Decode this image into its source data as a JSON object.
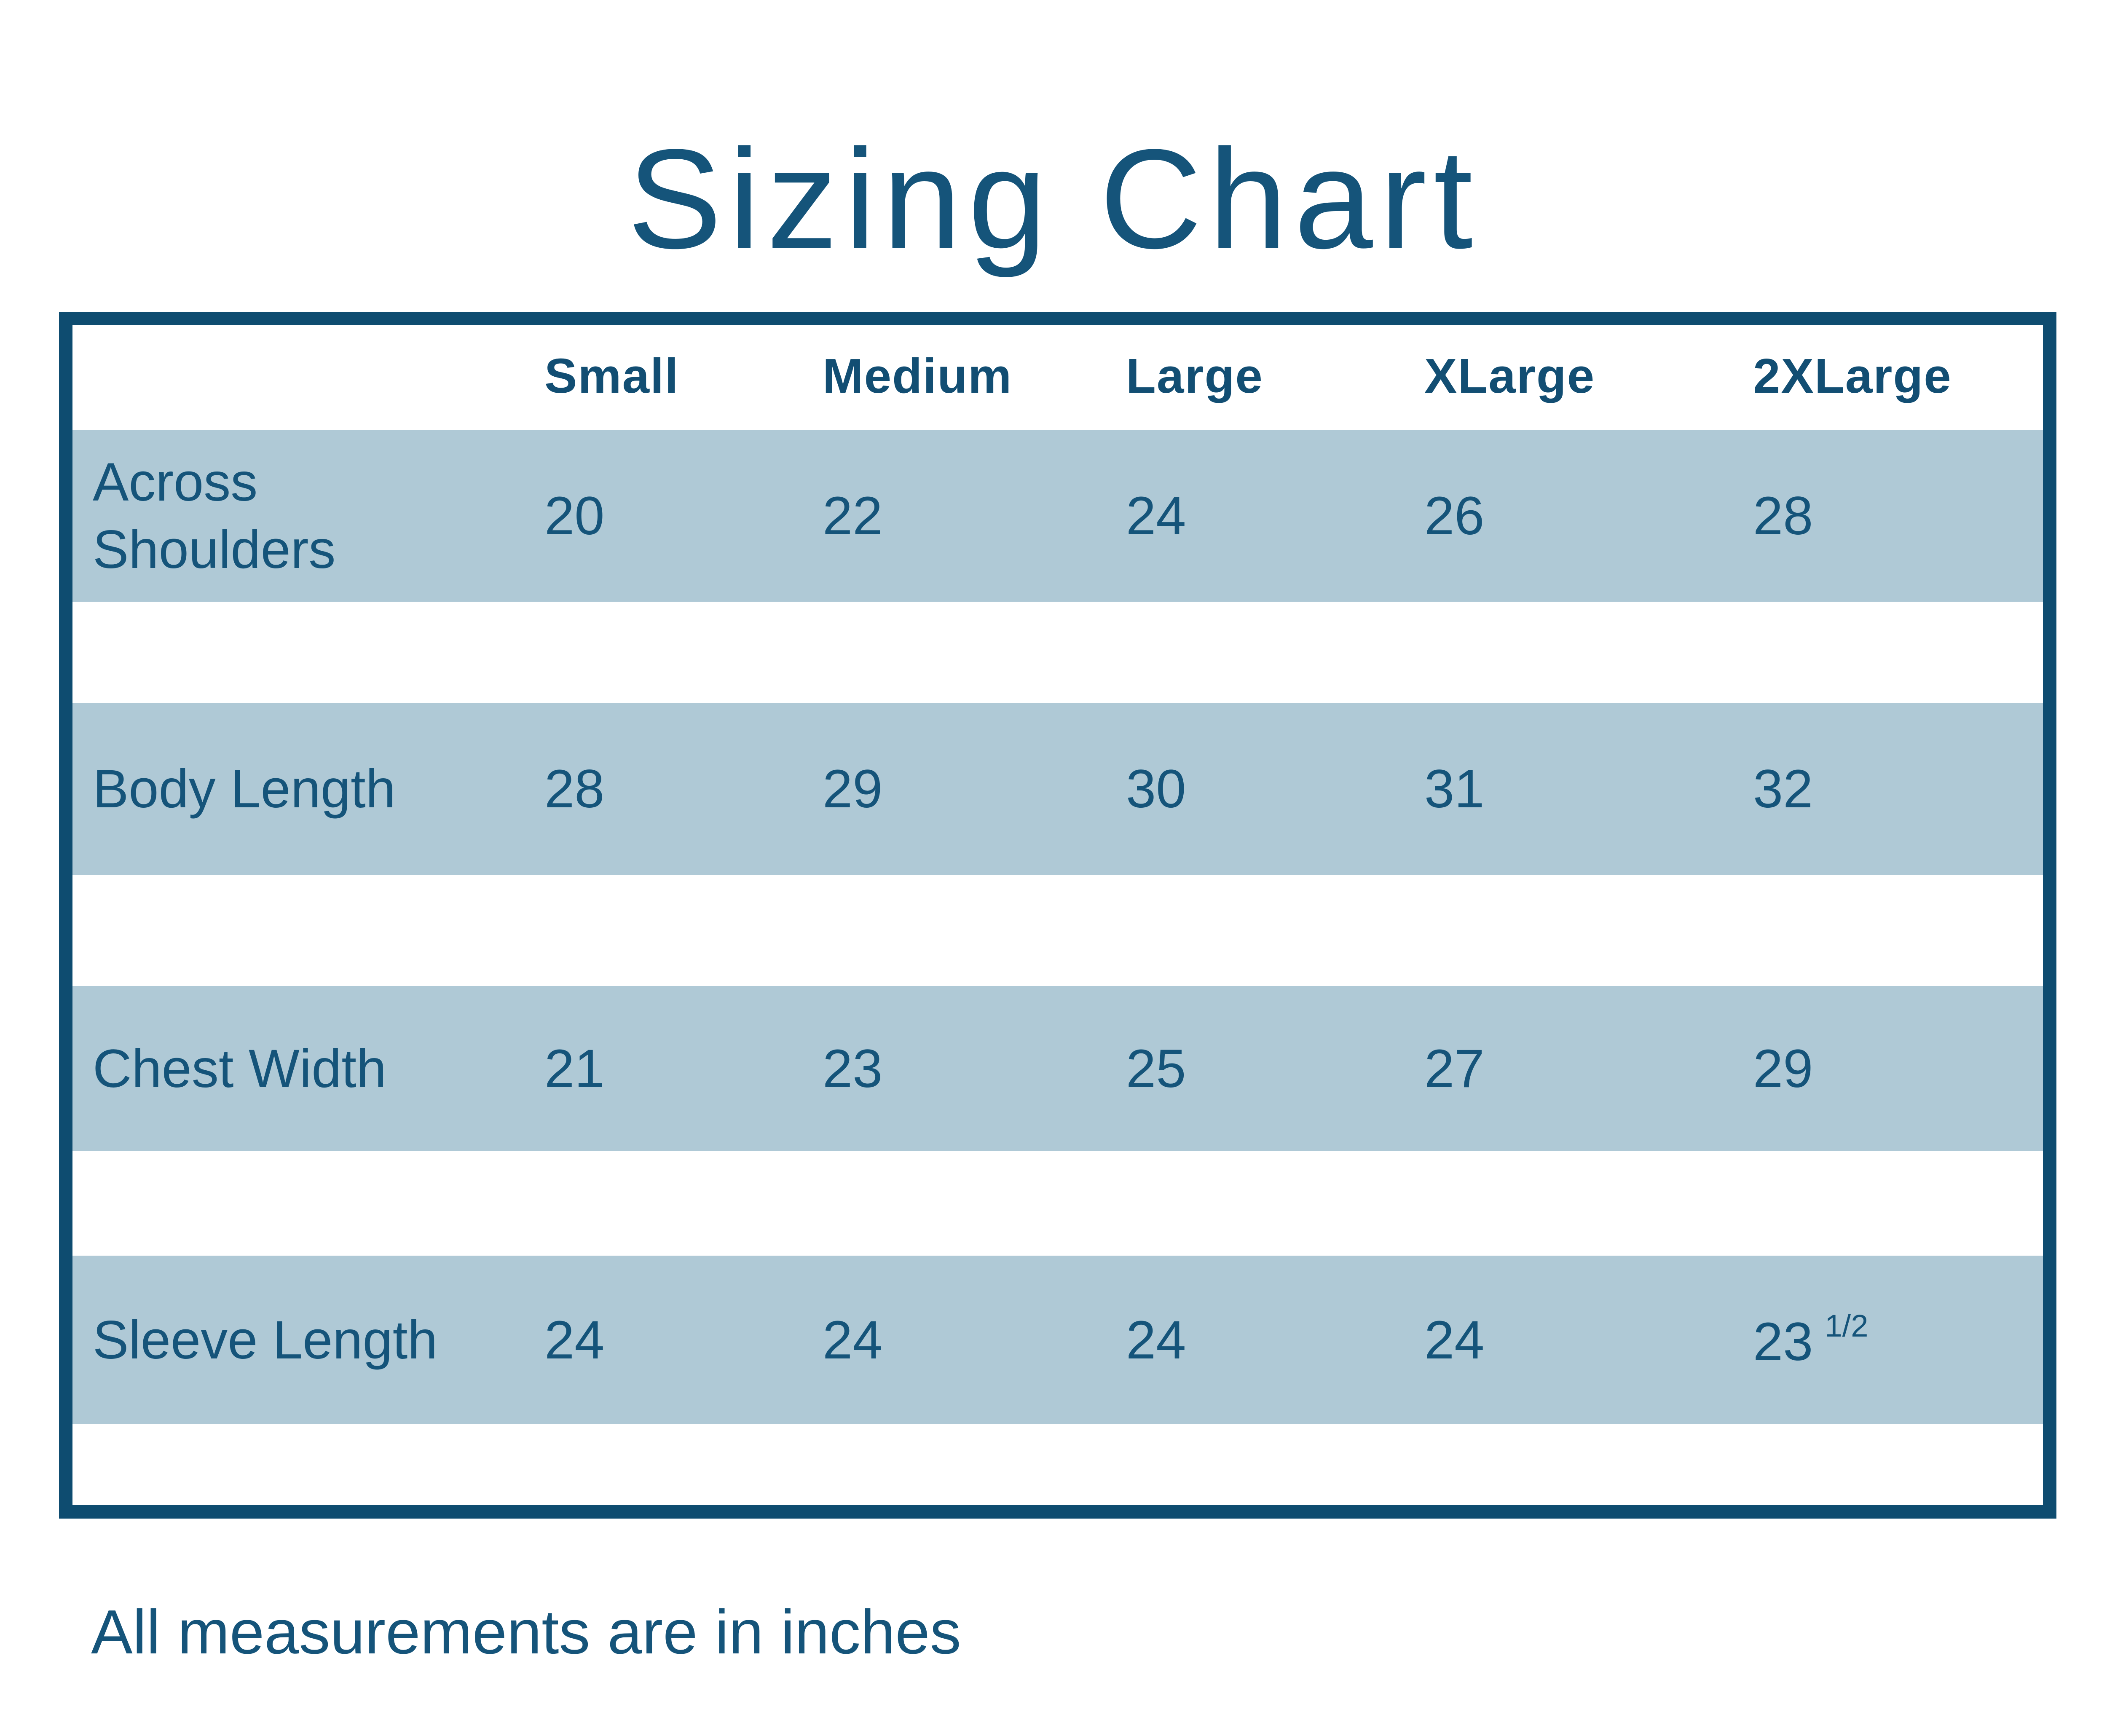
{
  "title": "Sizing Chart",
  "footnote": "All measurements are in inches",
  "colors": {
    "text_blue": "#15547a",
    "border_blue": "#0e4c70",
    "row_background": "#afc9d6",
    "page_background": "#ffffff"
  },
  "chart_data": {
    "type": "table",
    "title": "Sizing Chart",
    "units": "inches",
    "size_headers": [
      "Small",
      "Medium",
      "Large",
      "XLarge",
      "2XLarge"
    ],
    "rows": [
      {
        "label": "Across Shoulders",
        "values": [
          "20",
          "22",
          "24",
          "26",
          "28"
        ]
      },
      {
        "label": "Body Length",
        "values": [
          "28",
          "29",
          "30",
          "31",
          "32"
        ]
      },
      {
        "label": "Chest Width",
        "values": [
          "21",
          "23",
          "25",
          "27",
          "29"
        ]
      },
      {
        "label": "Sleeve Length",
        "values": [
          "24",
          "24",
          "24",
          "24",
          "23"
        ],
        "fraction": "1/2"
      }
    ]
  },
  "table": {
    "size_headers": [
      "Small",
      "Medium",
      "Large",
      "XLarge",
      "2XLarge"
    ],
    "rows": [
      {
        "label": "Across Shoulders",
        "values": [
          "20",
          "22",
          "24",
          "26",
          "28"
        ]
      },
      {
        "label": "Body Length",
        "values": [
          "28",
          "29",
          "30",
          "31",
          "32"
        ]
      },
      {
        "label": "Chest Width",
        "values": [
          "21",
          "23",
          "25",
          "27",
          "29"
        ]
      },
      {
        "label": "Sleeve Length",
        "values": [
          "24",
          "24",
          "24",
          "24",
          "23"
        ],
        "fraction": "1/2"
      }
    ]
  }
}
